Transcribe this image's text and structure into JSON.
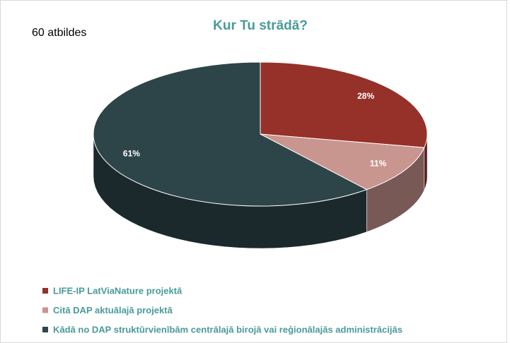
{
  "chart_data": {
    "type": "pie",
    "title": "Kur Tu strādā?",
    "annotation": "60 atbildes",
    "categories": [
      "LIFE-IP LatViaNature projektā",
      "Citā DAP aktuālajā projektā",
      "Kādā no DAP struktūrvienībām centrālajā birojā vai reģionālajās administrācijās"
    ],
    "values": [
      28,
      11,
      61
    ],
    "value_labels": [
      "28%",
      "11%",
      "61%"
    ],
    "colors": [
      "#953129",
      "#c9958f",
      "#2d4549"
    ],
    "legend": "bottom"
  }
}
